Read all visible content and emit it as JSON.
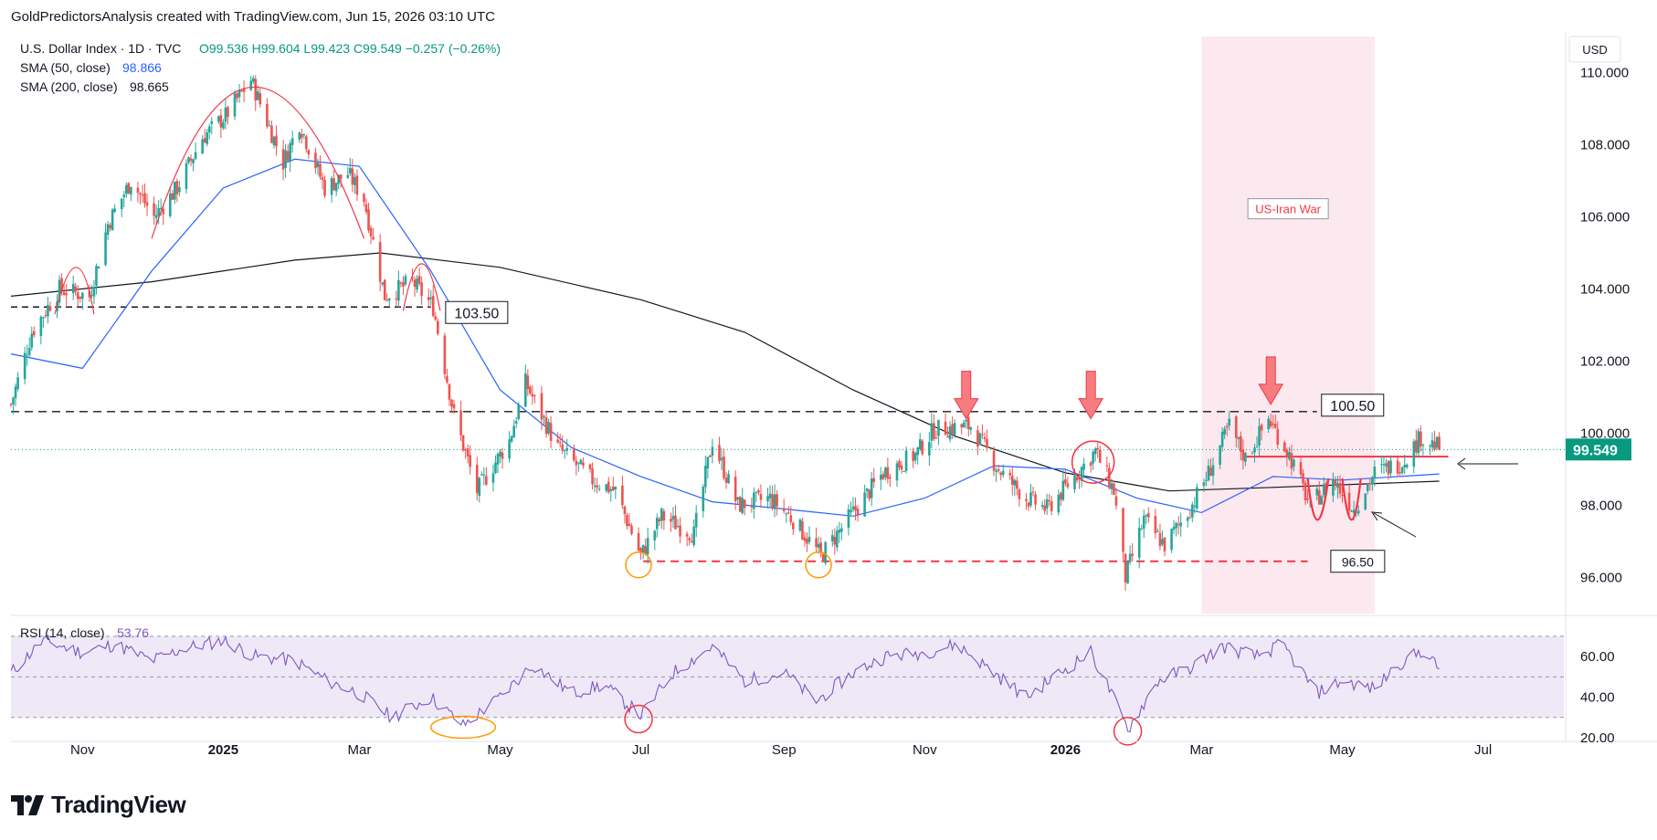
{
  "header": {
    "credit": "GoldPredictorsAnalysis created with TradingView.com, Jun 15, 2026 03:10 UTC"
  },
  "legend": {
    "symbol": "U.S. Dollar Index · 1D · TVC",
    "ohlc": "O99.536  H99.604  L99.423  C99.549  −0.257 (−0.26%)",
    "sma50_label": "SMA (50, close)",
    "sma50_value": "98.866",
    "sma200_label": "SMA (200, close)",
    "sma200_value": "98.665",
    "rsi_label": "RSI (14, close)",
    "rsi_value": "53.76"
  },
  "currency": "USD",
  "logo_text": "TradingView",
  "colors": {
    "up": "#26a69a",
    "down": "#ef5350",
    "sma50": "#2962ff",
    "sma200": "#131722",
    "rsi": "#7e57c2",
    "price_tag": "#089981",
    "war_zone": "#fce4ec",
    "red_line": "#f23645",
    "orange": "#ff9800"
  },
  "chart_data": [
    {
      "type": "candlestick",
      "title": "U.S. Dollar Index · 1D · TVC",
      "ylim": [
        95.0,
        111.0
      ],
      "y_ticks": [
        "110.000",
        "108.000",
        "106.000",
        "104.000",
        "102.000",
        "100.000",
        "98.000",
        "96.000"
      ],
      "x_ticks": [
        "Nov",
        "2025",
        "Mar",
        "May",
        "Jul",
        "Sep",
        "Nov",
        "2026",
        "Mar",
        "May",
        "Jul"
      ],
      "last_price": "99.549",
      "price_path": [
        [
          "2024-10-01",
          100.8
        ],
        [
          "2024-10-10",
          102.8
        ],
        [
          "2024-10-22",
          104.0
        ],
        [
          "2024-11-04",
          103.8
        ],
        [
          "2024-11-12",
          105.8
        ],
        [
          "2024-11-22",
          107.0
        ],
        [
          "2024-12-02",
          106.0
        ],
        [
          "2024-12-12",
          106.8
        ],
        [
          "2024-12-23",
          108.2
        ],
        [
          "2025-01-02",
          108.8
        ],
        [
          "2025-01-13",
          109.8
        ],
        [
          "2025-01-27",
          107.5
        ],
        [
          "2025-02-03",
          108.6
        ],
        [
          "2025-02-14",
          106.8
        ],
        [
          "2025-02-24",
          107.2
        ],
        [
          "2025-03-03",
          106.5
        ],
        [
          "2025-03-12",
          103.8
        ],
        [
          "2025-03-24",
          104.2
        ],
        [
          "2025-04-02",
          103.5
        ],
        [
          "2025-04-11",
          100.5
        ],
        [
          "2025-04-21",
          98.4
        ],
        [
          "2025-05-05",
          99.8
        ],
        [
          "2025-05-12",
          101.4
        ],
        [
          "2025-05-26",
          99.6
        ],
        [
          "2025-06-10",
          98.7
        ],
        [
          "2025-06-20",
          98.4
        ],
        [
          "2025-07-01",
          96.6
        ],
        [
          "2025-07-10",
          97.7
        ],
        [
          "2025-07-24",
          97.2
        ],
        [
          "2025-08-01",
          99.8
        ],
        [
          "2025-08-12",
          98.0
        ],
        [
          "2025-08-26",
          98.2
        ],
        [
          "2025-09-05",
          97.6
        ],
        [
          "2025-09-17",
          96.6
        ],
        [
          "2025-10-01",
          97.8
        ],
        [
          "2025-10-14",
          98.9
        ],
        [
          "2025-10-28",
          99.4
        ],
        [
          "2025-11-05",
          100.1
        ],
        [
          "2025-11-21",
          100.2
        ],
        [
          "2025-12-03",
          99.0
        ],
        [
          "2025-12-15",
          98.2
        ],
        [
          "2025-12-24",
          97.9
        ],
        [
          "2026-01-05",
          98.8
        ],
        [
          "2026-01-14",
          99.5
        ],
        [
          "2026-01-22",
          98.4
        ],
        [
          "2026-01-27",
          96.0
        ],
        [
          "2026-02-04",
          97.6
        ],
        [
          "2026-02-13",
          96.9
        ],
        [
          "2026-02-24",
          97.9
        ],
        [
          "2026-03-04",
          98.9
        ],
        [
          "2026-03-13",
          100.2
        ],
        [
          "2026-03-20",
          99.3
        ],
        [
          "2026-03-30",
          100.4
        ],
        [
          "2026-04-08",
          99.4
        ],
        [
          "2026-04-17",
          98.0
        ],
        [
          "2026-04-27",
          98.7
        ],
        [
          "2026-05-06",
          97.9
        ],
        [
          "2026-05-15",
          98.9
        ],
        [
          "2026-05-27",
          99.2
        ],
        [
          "2026-06-04",
          99.9
        ],
        [
          "2026-06-12",
          99.6
        ]
      ],
      "sma50_path": [
        [
          "2024-10-01",
          102.2
        ],
        [
          "2024-11-01",
          101.8
        ],
        [
          "2024-12-01",
          104.5
        ],
        [
          "2025-01-01",
          106.8
        ],
        [
          "2025-02-01",
          107.6
        ],
        [
          "2025-03-01",
          107.4
        ],
        [
          "2025-04-01",
          104.5
        ],
        [
          "2025-05-01",
          101.2
        ],
        [
          "2025-06-01",
          99.6
        ],
        [
          "2025-07-01",
          98.8
        ],
        [
          "2025-08-01",
          98.1
        ],
        [
          "2025-09-01",
          97.9
        ],
        [
          "2025-10-01",
          97.7
        ],
        [
          "2025-11-01",
          98.2
        ],
        [
          "2025-12-01",
          99.1
        ],
        [
          "2026-01-01",
          99.0
        ],
        [
          "2026-02-01",
          98.2
        ],
        [
          "2026-03-01",
          97.8
        ],
        [
          "2026-04-01",
          98.8
        ],
        [
          "2026-05-01",
          98.7
        ],
        [
          "2026-06-12",
          98.87
        ]
      ],
      "sma200_path": [
        [
          "2024-10-01",
          103.8
        ],
        [
          "2024-12-01",
          104.2
        ],
        [
          "2025-02-01",
          104.8
        ],
        [
          "2025-03-10",
          105.0
        ],
        [
          "2025-05-01",
          104.6
        ],
        [
          "2025-07-01",
          103.7
        ],
        [
          "2025-08-15",
          102.8
        ],
        [
          "2025-10-01",
          101.2
        ],
        [
          "2025-11-15",
          99.9
        ],
        [
          "2026-01-01",
          98.9
        ],
        [
          "2026-02-15",
          98.4
        ],
        [
          "2026-04-01",
          98.5
        ],
        [
          "2026-06-12",
          98.67
        ]
      ],
      "levels": [
        {
          "label": "103.50",
          "value": 103.5
        },
        {
          "label": "100.50",
          "value": 100.6
        },
        {
          "label": "96.50",
          "value": 96.45
        }
      ],
      "war_band": {
        "label": "US-Iran War",
        "start": "2026-03-01",
        "end": "2026-05-15"
      },
      "neckline": {
        "value": 99.35,
        "start": "2026-03-20",
        "end": "2026-06-12"
      },
      "resistance_arrows": [
        {
          "date": "2025-11-19",
          "value": 100.3
        },
        {
          "date": "2026-01-12",
          "value": 100.3
        },
        {
          "date": "2026-03-31",
          "value": 100.7
        }
      ],
      "double_bottom_circles": [
        {
          "date": "2025-06-30",
          "value": 96.5
        },
        {
          "date": "2025-09-16",
          "value": 96.5
        }
      ],
      "arcs": [
        {
          "start": "2024-12-01",
          "peak_date": "2025-01-13",
          "peak_value": 109.6,
          "end": "2025-03-03"
        },
        {
          "start": "2024-10-20",
          "peak_date": "2024-10-30",
          "peak_value": 104.6,
          "end": "2024-11-06"
        },
        {
          "start": "2025-03-20",
          "peak_date": "2025-03-28",
          "peak_value": 104.7,
          "end": "2025-04-05"
        },
        {
          "start": "2026-04-16",
          "peak_date": "2026-04-20",
          "peak_value": 97.6,
          "end": "2026-04-25",
          "shape": "cup"
        },
        {
          "start": "2026-05-01",
          "peak_date": "2026-05-05",
          "peak_value": 97.6,
          "end": "2026-05-09",
          "shape": "cup"
        }
      ],
      "circle_marker": {
        "date": "2026-01-13",
        "value": 99.2
      }
    },
    {
      "type": "line",
      "title": "RSI (14, close)",
      "ylim": [
        20,
        74
      ],
      "y_ticks": [
        "60.00",
        "40.00",
        "20.00"
      ],
      "band": [
        30,
        70
      ],
      "rsi_path": [
        [
          "2024-10-01",
          52
        ],
        [
          "2024-10-15",
          68
        ],
        [
          "2024-11-01",
          62
        ],
        [
          "2024-11-15",
          66
        ],
        [
          "2024-12-01",
          58
        ],
        [
          "2024-12-15",
          64
        ],
        [
          "2025-01-01",
          68
        ],
        [
          "2025-01-15",
          60
        ],
        [
          "2025-02-01",
          58
        ],
        [
          "2025-02-15",
          48
        ],
        [
          "2025-03-01",
          42
        ],
        [
          "2025-03-15",
          30
        ],
        [
          "2025-04-01",
          40
        ],
        [
          "2025-04-15",
          26
        ],
        [
          "2025-05-01",
          40
        ],
        [
          "2025-05-15",
          56
        ],
        [
          "2025-06-01",
          42
        ],
        [
          "2025-06-15",
          46
        ],
        [
          "2025-07-01",
          31
        ],
        [
          "2025-07-15",
          52
        ],
        [
          "2025-08-01",
          65
        ],
        [
          "2025-08-15",
          48
        ],
        [
          "2025-09-01",
          52
        ],
        [
          "2025-09-15",
          38
        ],
        [
          "2025-10-01",
          52
        ],
        [
          "2025-10-15",
          60
        ],
        [
          "2025-11-01",
          62
        ],
        [
          "2025-11-15",
          66
        ],
        [
          "2025-12-01",
          52
        ],
        [
          "2025-12-15",
          40
        ],
        [
          "2026-01-01",
          54
        ],
        [
          "2026-01-12",
          62
        ],
        [
          "2026-01-20",
          44
        ],
        [
          "2026-01-28",
          24
        ],
        [
          "2026-02-10",
          48
        ],
        [
          "2026-02-25",
          55
        ],
        [
          "2026-03-10",
          65
        ],
        [
          "2026-03-25",
          60
        ],
        [
          "2026-04-05",
          66
        ],
        [
          "2026-04-20",
          42
        ],
        [
          "2026-05-01",
          48
        ],
        [
          "2026-05-15",
          44
        ],
        [
          "2026-05-25",
          56
        ],
        [
          "2026-06-05",
          63
        ],
        [
          "2026-06-12",
          53.76
        ]
      ],
      "circles": [
        {
          "date": "2025-06-30",
          "value": 31,
          "color": "red"
        },
        {
          "date": "2026-01-28",
          "value": 25,
          "color": "red"
        }
      ],
      "ellipse": {
        "start": "2025-04-05",
        "end": "2025-04-25",
        "value": 27
      }
    }
  ]
}
